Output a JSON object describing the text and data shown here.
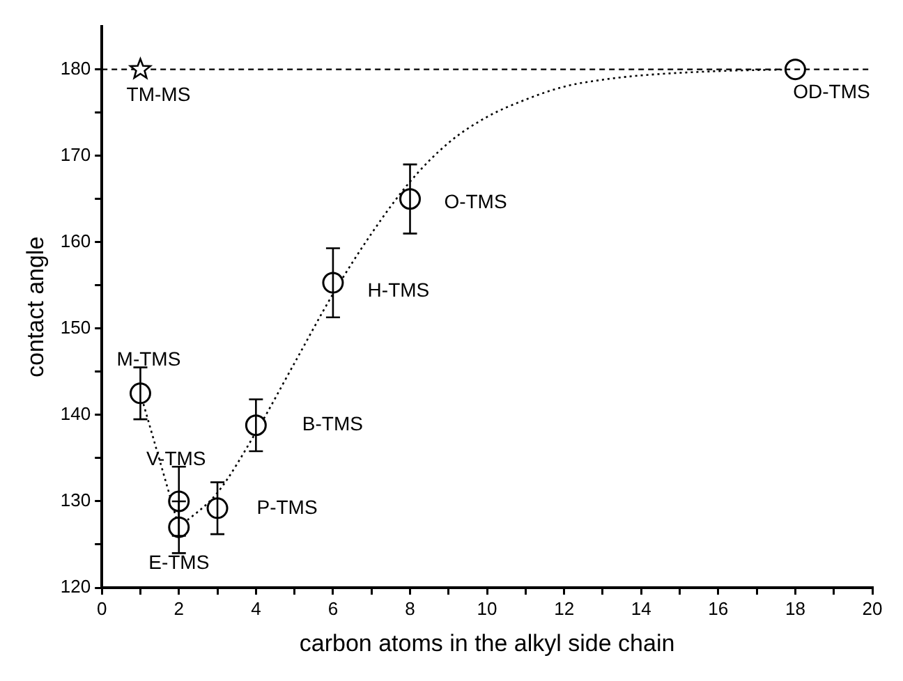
{
  "chart_data": {
    "type": "scatter",
    "xlabel": "carbon atoms in the alkyl side chain",
    "ylabel": "contact angle",
    "xlim": [
      0,
      20
    ],
    "ylim": [
      120,
      185
    ],
    "xticks": [
      0,
      {
        "value": 1,
        "label": null
      },
      2,
      {
        "value": 3,
        "label": null
      },
      4,
      {
        "value": 5,
        "label": null
      },
      6,
      {
        "value": 7,
        "label": null
      },
      8,
      {
        "value": 9,
        "label": null
      },
      10,
      {
        "value": 11,
        "label": null
      },
      12,
      {
        "value": 13,
        "label": null
      },
      14,
      {
        "value": 15,
        "label": null
      },
      16,
      {
        "value": 17,
        "label": null
      },
      18,
      {
        "value": 19,
        "label": null
      },
      20
    ],
    "yticks": [
      120,
      {
        "value": 125,
        "label": null
      },
      130,
      {
        "value": 135,
        "label": null
      },
      140,
      {
        "value": 145,
        "label": null
      },
      150,
      {
        "value": 155,
        "label": null
      },
      160,
      {
        "value": 165,
        "label": null
      },
      170,
      {
        "value": 175,
        "label": null
      },
      180
    ],
    "grid": false,
    "legend": false,
    "series": [
      {
        "type": "scatter",
        "marker": "circle",
        "color": "#000000",
        "x": [
          1,
          2,
          2,
          3,
          4,
          6,
          8,
          18
        ],
        "values": [
          142.5,
          130,
          127,
          129.2,
          138.8,
          155.3,
          165,
          180
        ],
        "errors": [
          3,
          4,
          3,
          3,
          3,
          4,
          4,
          null
        ]
      },
      {
        "type": "scatter",
        "marker": "star",
        "color": "#000000",
        "x": [
          1
        ],
        "values": [
          180
        ]
      },
      {
        "type": "line",
        "marker": "none",
        "line_style": "dotted",
        "color": "#000000",
        "x": [
          1,
          2
        ],
        "values": [
          142.5,
          127
        ]
      },
      {
        "type": "line",
        "marker": "none",
        "line_style": "dotted",
        "color": "#000000",
        "x": [
          2,
          3,
          4,
          5,
          6,
          7,
          8,
          9,
          10,
          11,
          12,
          13,
          14,
          16,
          18
        ],
        "values": [
          127,
          131,
          138,
          146,
          154,
          161,
          167,
          171.5,
          174.5,
          176.5,
          178,
          178.8,
          179.3,
          179.8,
          180
        ]
      }
    ],
    "ref_lines": [
      {
        "axis": "y",
        "value": 180,
        "line_style": "dashed",
        "color": "#000000"
      }
    ],
    "annotations": [
      {
        "text": "M-TMS",
        "x": 1,
        "y": 142.5
      },
      {
        "text": "V-TMS",
        "x": 2,
        "y": 130
      },
      {
        "text": "E-TMS",
        "x": 2,
        "y": 127
      },
      {
        "text": "P-TMS",
        "x": 3,
        "y": 129.2
      },
      {
        "text": "B-TMS",
        "x": 4,
        "y": 138.8
      },
      {
        "text": "H-TMS",
        "x": 6,
        "y": 155.3
      },
      {
        "text": "O-TMS",
        "x": 8,
        "y": 165
      },
      {
        "text": "OD-TMS",
        "x": 18,
        "y": 180
      },
      {
        "text": "TM-MS",
        "x": 1,
        "y": 180
      }
    ]
  }
}
